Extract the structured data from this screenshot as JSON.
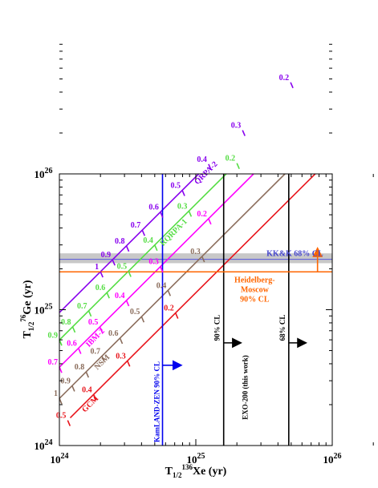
{
  "chart_data": {
    "type": "line",
    "x_axis": {
      "title_main": "T",
      "title_sub": "1/2",
      "title_sup": "136",
      "title_rest": "Xe (yr)",
      "scale": "log",
      "range": [
        1e+24,
        1e+26
      ],
      "ticks": [
        {
          "value": 1e+24,
          "base": "10",
          "exp": "24"
        },
        {
          "value": 1e+25,
          "base": "10",
          "exp": "25"
        },
        {
          "value": 1e+26,
          "base": "10",
          "exp": "26"
        }
      ]
    },
    "y_axis": {
      "title_main": "T",
      "title_sub": "1/2",
      "title_sup": "76",
      "title_rest": "Ge (yr)",
      "scale": "log",
      "range": [
        1e+24,
        1e+26
      ],
      "ticks": [
        {
          "value": 1e+24,
          "base": "10",
          "exp": "24"
        },
        {
          "value": 1e+25,
          "base": "10",
          "exp": "25"
        },
        {
          "value": 1e+26,
          "base": "10",
          "exp": "26"
        }
      ]
    },
    "series": [
      {
        "name": "GCM",
        "color": "#e8141b",
        "ratio": 0.75,
        "x_start": 1.2e+24,
        "name_at_x": 1.5e+24,
        "marks": [
          {
            "label": "0.5",
            "x": 1.15e+24
          },
          {
            "label": "0.4",
            "x": 1.78e+24
          },
          {
            "label": "0.3",
            "x": 3.15e+24
          },
          {
            "label": "0.2",
            "x": 7.1e+24
          }
        ]
      },
      {
        "name": "NSM",
        "color": "#8b6d5c",
        "ratio": 0.45,
        "x_start": 1e+24,
        "name_at_x": 1.85e+24,
        "marks": [
          {
            "label": "1",
            "x": 1e+24
          },
          {
            "label": "0.9",
            "x": 1.24e+24
          },
          {
            "label": "0.8",
            "x": 1.57e+24
          },
          {
            "label": "0.7",
            "x": 2.05e+24
          },
          {
            "label": "0.6",
            "x": 2.78e+24
          },
          {
            "label": "0.5",
            "x": 4e+24
          },
          {
            "label": "0.4",
            "x": 6.25e+24
          },
          {
            "label": "0.3",
            "x": 1.11e+25
          }
        ]
      },
      {
        "name": "IBM-2",
        "color": "#ff00ff",
        "ratio": 0.265,
        "x_start": 1e+24,
        "name_at_x": 1.6e+24,
        "marks": [
          {
            "label": "0.7",
            "x": 1e+24
          },
          {
            "label": "0.6",
            "x": 1.38e+24
          },
          {
            "label": "0.5",
            "x": 1.98e+24
          },
          {
            "label": "0.4",
            "x": 3.1e+24
          },
          {
            "label": "0.3",
            "x": 5.5e+24
          },
          {
            "label": "0.2",
            "x": 1.24e+25
          }
        ]
      },
      {
        "name": "RQRPA-1",
        "color": "#55dd44",
        "ratio": 0.167,
        "x_start": 1e+24,
        "name_at_x": 5.6e+24,
        "marks": [
          {
            "label": "0.9",
            "x": 1e+24
          },
          {
            "label": "0.8",
            "x": 1.25e+24
          },
          {
            "label": "0.7",
            "x": 1.64e+24
          },
          {
            "label": "0.6",
            "x": 2.23e+24
          },
          {
            "label": "0.5",
            "x": 3.21e+24
          },
          {
            "label": "0.4",
            "x": 5e+24
          },
          {
            "label": "0.3",
            "x": 8.9e+24
          },
          {
            "label": "0.2",
            "x": 2e+25
          }
        ]
      },
      {
        "name": "QRPA-2",
        "color": "#8800ee",
        "ratio": 0.105,
        "x_start": 1e+24,
        "name_at_x": 1e+25,
        "marks": [
          {
            "label": "1",
            "x": 2e+24
          },
          {
            "label": "0.9",
            "x": 2.45e+24
          },
          {
            "label": "0.8",
            "x": 3.1e+24
          },
          {
            "label": "0.7",
            "x": 4.05e+24
          },
          {
            "label": "0.6",
            "x": 5.5e+24
          },
          {
            "label": "0.5",
            "x": 7.95e+24
          },
          {
            "label": "0.4",
            "x": 1.24e+25
          },
          {
            "label": "0.3",
            "x": 2.2e+25
          },
          {
            "label": "0.2",
            "x": 4.95e+25
          }
        ]
      }
    ],
    "limits": [
      {
        "kind": "vertical",
        "x": 5.7e+24,
        "color": "#0000ee",
        "label": "KamLAND-ZEN 90% CL",
        "label_color": "#0000ee"
      },
      {
        "kind": "vertical",
        "x": 1.6e+25,
        "color": "#000000",
        "label": "90% CL",
        "label_color": "#000000"
      },
      {
        "kind": "vertical",
        "x": 4.8e+25,
        "color": "#000000",
        "label": "68% CL",
        "label_color": "#000000"
      },
      {
        "kind": "horizontal",
        "y": 1.9e+25,
        "color": "#ff6600",
        "label_lines": [
          "Heidelberg-",
          "Moscow",
          "90% CL"
        ],
        "label_color": "#ff6600"
      },
      {
        "kind": "band",
        "y_low": 2.2e+25,
        "y_high": 2.6e+25,
        "y_center": 2.35e+25,
        "color": "#c8c8c8",
        "line_color": "#5555dd",
        "label": "KK&K 68% CL",
        "label_color": "#4444cc"
      }
    ],
    "exo_label": "EXO-200 (this work)",
    "grid": false,
    "legend": "none"
  }
}
